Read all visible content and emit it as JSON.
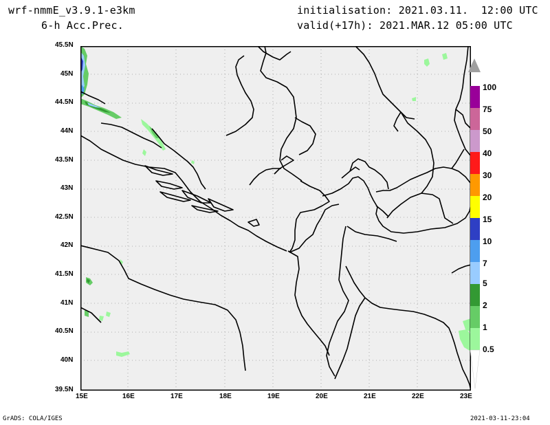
{
  "header": {
    "model": "wrf-nmmE_v3.9.1-e3km",
    "field": "6-h Acc.Prec.",
    "init": "initialisation: 2021.03.11.  12:00 UTC",
    "valid": "valid(+17h): 2021.MAR.12 05:00 UTC"
  },
  "axes": {
    "lat_labels": [
      "45.5N",
      "45N",
      "44.5N",
      "44N",
      "43.5N",
      "43N",
      "42.5N",
      "42N",
      "41.5N",
      "41N",
      "40.5N",
      "40N",
      "39.5N"
    ],
    "lon_labels": [
      "15E",
      "16E",
      "17E",
      "18E",
      "19E",
      "20E",
      "21E",
      "22E",
      "23E"
    ]
  },
  "colorbar": {
    "levels": [
      "0.5",
      "1",
      "2",
      "5",
      "7",
      "10",
      "15",
      "20",
      "30",
      "40",
      "50",
      "75",
      "100"
    ],
    "colors": [
      "#ffffff",
      "#9cf79c",
      "#66cc66",
      "#339933",
      "#99ccff",
      "#4d9eef",
      "#2e3fc4",
      "#ffff00",
      "#ff9900",
      "#ff1a1a",
      "#cc99cc",
      "#cc6699",
      "#990099",
      "#a0a0a0"
    ]
  },
  "map": {
    "background": "#efefef",
    "lon_range": [
      15,
      23.3
    ],
    "lat_range": [
      39.5,
      45.5
    ]
  },
  "footer": {
    "left": "GrADS: COLA/IGES",
    "right": "2021-03-11-23:04"
  }
}
